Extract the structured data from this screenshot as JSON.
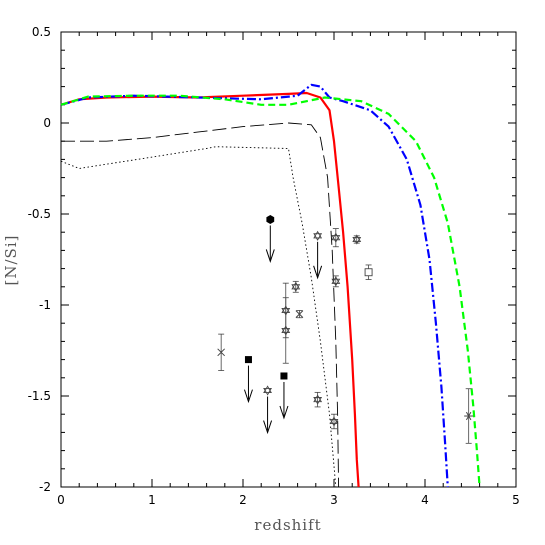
{
  "chart_data": {
    "type": "line",
    "title": "",
    "xlabel": "redshift",
    "ylabel": "[N/Si]",
    "xlim": [
      0,
      5
    ],
    "ylim": [
      -2,
      0.5
    ],
    "x_ticks": [
      0,
      1,
      2,
      3,
      4,
      5
    ],
    "x_tick_labels": [
      "0",
      "1",
      "2",
      "3",
      "4",
      "5"
    ],
    "y_ticks": [
      -2,
      -1.5,
      -1,
      -0.5,
      0,
      0.5
    ],
    "y_tick_labels": [
      "-2",
      "-1.5",
      "-1",
      "-0.5",
      "0",
      "0.5"
    ],
    "grid": false,
    "legend": "none",
    "series": [
      {
        "style": "solid",
        "color": "#ff0000",
        "x": [
          0,
          0.2,
          0.5,
          1.0,
          1.5,
          2.0,
          2.5,
          2.7,
          2.85,
          2.95,
          3.0,
          3.05,
          3.1,
          3.15,
          3.2,
          3.23,
          3.25,
          3.27
        ],
        "y": [
          0.1,
          0.13,
          0.14,
          0.145,
          0.14,
          0.15,
          0.16,
          0.165,
          0.14,
          0.07,
          -0.1,
          -0.35,
          -0.6,
          -0.9,
          -1.3,
          -1.6,
          -1.85,
          -2.0
        ]
      },
      {
        "style": "dashdot",
        "color": "#0000ff",
        "x": [
          0,
          0.3,
          0.8,
          1.5,
          2.2,
          2.6,
          2.75,
          2.85,
          2.95,
          3.1,
          3.4,
          3.6,
          3.8,
          3.95,
          4.05,
          4.12,
          4.18,
          4.22,
          4.25
        ],
        "y": [
          0.1,
          0.14,
          0.15,
          0.14,
          0.13,
          0.15,
          0.21,
          0.2,
          0.14,
          0.12,
          0.07,
          -0.02,
          -0.2,
          -0.45,
          -0.75,
          -1.1,
          -1.45,
          -1.75,
          -2.0
        ]
      },
      {
        "style": "dashed",
        "color": "#00ff00",
        "x": [
          0,
          0.3,
          0.8,
          1.3,
          1.8,
          2.2,
          2.5,
          2.9,
          3.3,
          3.6,
          3.9,
          4.1,
          4.25,
          4.38,
          4.47,
          4.53,
          4.57,
          4.6
        ],
        "y": [
          0.1,
          0.145,
          0.15,
          0.15,
          0.13,
          0.1,
          0.1,
          0.14,
          0.12,
          0.05,
          -0.1,
          -0.3,
          -0.55,
          -0.9,
          -1.25,
          -1.55,
          -1.8,
          -2.0
        ]
      },
      {
        "style": "longdash",
        "color": "#000000",
        "x": [
          0,
          0.5,
          1.0,
          1.5,
          2.0,
          2.5,
          2.75,
          2.85,
          2.93,
          2.98,
          3.02,
          3.04,
          3.05
        ],
        "y": [
          -0.1,
          -0.1,
          -0.08,
          -0.05,
          -0.02,
          0.0,
          -0.01,
          -0.08,
          -0.3,
          -0.7,
          -1.2,
          -1.6,
          -2.0
        ]
      },
      {
        "style": "dotted",
        "color": "#000000",
        "x": [
          0,
          0.2,
          1.6,
          1.7,
          2.5,
          2.55,
          2.65,
          2.75,
          2.85,
          2.95,
          3.02
        ],
        "y": [
          -0.21,
          -0.25,
          -0.14,
          -0.13,
          -0.14,
          -0.3,
          -0.55,
          -0.85,
          -1.2,
          -1.6,
          -2.0
        ]
      }
    ],
    "data_points": [
      {
        "marker": "hexagon",
        "x": 2.3,
        "y": -0.53,
        "upper_limit": true
      },
      {
        "marker": "square",
        "x": 2.06,
        "y": -1.3,
        "upper_limit": true
      },
      {
        "marker": "square",
        "x": 2.45,
        "y": -1.39,
        "upper_limit": true
      },
      {
        "marker": "star",
        "x": 2.58,
        "y": -0.9,
        "err": 0.03
      },
      {
        "marker": "star",
        "x": 2.47,
        "y": -1.03,
        "err": 0.15
      },
      {
        "marker": "star",
        "x": 2.47,
        "y": -1.14,
        "err": 0.18
      },
      {
        "marker": "star",
        "x": 2.27,
        "y": -1.47,
        "upper_limit": true
      },
      {
        "marker": "star",
        "x": 2.82,
        "y": -0.62,
        "upper_limit": true
      },
      {
        "marker": "star",
        "x": 3.02,
        "y": -0.63,
        "err": 0.05
      },
      {
        "marker": "star",
        "x": 3.25,
        "y": -0.64,
        "err": 0.02
      },
      {
        "marker": "star",
        "x": 3.02,
        "y": -0.87,
        "err": 0.03
      },
      {
        "marker": "star",
        "x": 2.82,
        "y": -1.52,
        "err": 0.04
      },
      {
        "marker": "star",
        "x": 3.0,
        "y": -1.64,
        "err": 0.04
      },
      {
        "marker": "cross",
        "x": 2.62,
        "y": -1.05,
        "err": 0.02
      },
      {
        "marker": "cross",
        "x": 1.76,
        "y": -1.26,
        "err": 0.1
      },
      {
        "marker": "open-square",
        "x": 3.38,
        "y": -0.82,
        "err": 0.04
      },
      {
        "marker": "asterisk",
        "x": 4.48,
        "y": -1.61,
        "err": 0.15
      }
    ]
  }
}
